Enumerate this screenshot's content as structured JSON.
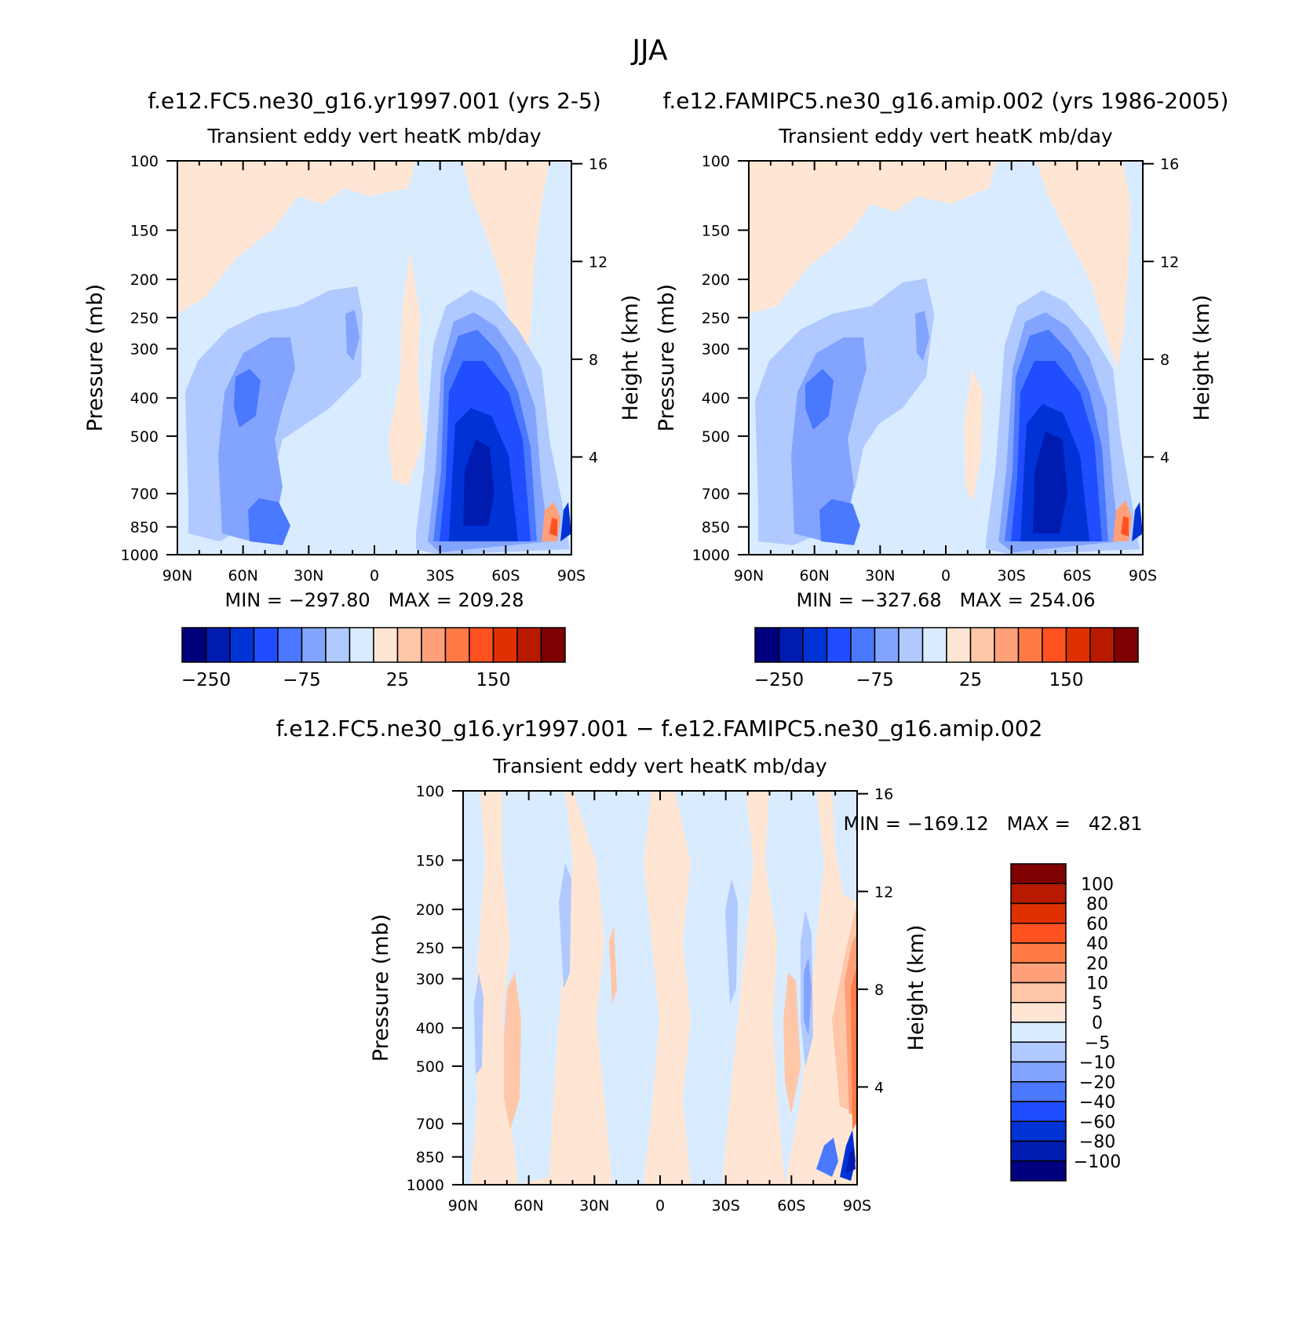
{
  "figure": {
    "title": "JJA",
    "field_title": "Transient eddy vert heatK mb/day"
  },
  "axes": {
    "x_ticks": [
      "90N",
      "60N",
      "30N",
      "0",
      "30S",
      "60S",
      "90S"
    ],
    "pressure_ticks": [
      "100",
      "150",
      "200",
      "250",
      "300",
      "400",
      "500",
      "700",
      "850",
      "1000"
    ],
    "height_ticks": [
      "4",
      "8",
      "12",
      "16"
    ],
    "left_label": "Pressure (mb)",
    "right_label": "Height (km)"
  },
  "colors": {
    "abs": [
      "#00007f",
      "#001cb0",
      "#0033d6",
      "#1f4dff",
      "#4a78ff",
      "#82a4ff",
      "#b0c9ff",
      "#d9ebff",
      "#ffe6d4",
      "#ffc6a8",
      "#ffa07a",
      "#ff7a45",
      "#ff5220",
      "#e03000",
      "#b81a00",
      "#7f0000"
    ],
    "diff": [
      "#00007f",
      "#001cb0",
      "#0033d6",
      "#1f4dff",
      "#4a78ff",
      "#82a4ff",
      "#b0c9ff",
      "#d9ebff",
      "#ffe6d4",
      "#ffc6a8",
      "#ffa07a",
      "#ff7a45",
      "#ff5220",
      "#e03000",
      "#b81a00",
      "#7f0000"
    ]
  },
  "chart_data": [
    {
      "type": "heatmap",
      "title": "f.e12.FC5.ne30_g16.yr1997.001 (yrs 2-5)",
      "subtitle": "Transient eddy vert heatK mb/day",
      "stats": "MIN = −297.80   MAX = 209.28",
      "xlabel": "",
      "ylabel": "Pressure (mb)",
      "y2label": "Height (km)",
      "colorbar_labels": [
        "−250",
        "−75",
        "25",
        "150"
      ],
      "colorbar_bins": 16,
      "features": [
        {
          "lat": -48,
          "p": 620,
          "value": -297.8
        },
        {
          "lat": -45,
          "p": 420,
          "value": -160
        },
        {
          "lat": 58,
          "p": 450,
          "value": -95
        },
        {
          "lat": 48,
          "p": 800,
          "value": -90
        },
        {
          "lat": 15,
          "p": 320,
          "value": -40
        },
        {
          "lat": -85,
          "p": 850,
          "value": 209.28
        }
      ]
    },
    {
      "type": "heatmap",
      "title": "f.e12.FAMIPC5.ne30_g16.amip.002 (yrs 1986-2005)",
      "subtitle": "Transient eddy vert heatK mb/day",
      "stats": "MIN = −327.68   MAX = 254.06",
      "xlabel": "",
      "ylabel": "Pressure (mb)",
      "y2label": "Height (km)",
      "colorbar_labels": [
        "−250",
        "−75",
        "25",
        "150"
      ],
      "colorbar_bins": 16,
      "features": [
        {
          "lat": -48,
          "p": 620,
          "value": -327.68
        },
        {
          "lat": -45,
          "p": 420,
          "value": -170
        },
        {
          "lat": 55,
          "p": 450,
          "value": -100
        },
        {
          "lat": 48,
          "p": 800,
          "value": -95
        },
        {
          "lat": 10,
          "p": 300,
          "value": -45
        },
        {
          "lat": -85,
          "p": 850,
          "value": 254.06
        }
      ]
    },
    {
      "type": "heatmap",
      "title": "f.e12.FC5.ne30_g16.yr1997.001 − f.e12.FAMIPC5.ne30_g16.amip.002",
      "subtitle": "Transient eddy vert heatK mb/day",
      "stats": "MIN = −169.12   MAX =   42.81",
      "xlabel": "",
      "ylabel": "Pressure (mb)",
      "y2label": "Height (km)",
      "colorbar_labels": [
        "100",
        "80",
        "60",
        "40",
        "20",
        "10",
        "5",
        "0",
        "−5",
        "−10",
        "−20",
        "−40",
        "−60",
        "−80",
        "−100"
      ],
      "colorbar_bins": 16,
      "features": [
        {
          "lat": -87,
          "p": 800,
          "value": -169.12
        },
        {
          "lat": -88,
          "p": 500,
          "value": 42.81
        },
        {
          "lat": 65,
          "p": 600,
          "value": 12
        },
        {
          "lat": -60,
          "p": 600,
          "value": 15
        },
        {
          "lat": -75,
          "p": 420,
          "value": -10
        },
        {
          "lat": 45,
          "p": 350,
          "value": -8
        },
        {
          "lat": -35,
          "p": 350,
          "value": -8
        },
        {
          "lat": 25,
          "p": 300,
          "value": 6
        }
      ]
    }
  ]
}
